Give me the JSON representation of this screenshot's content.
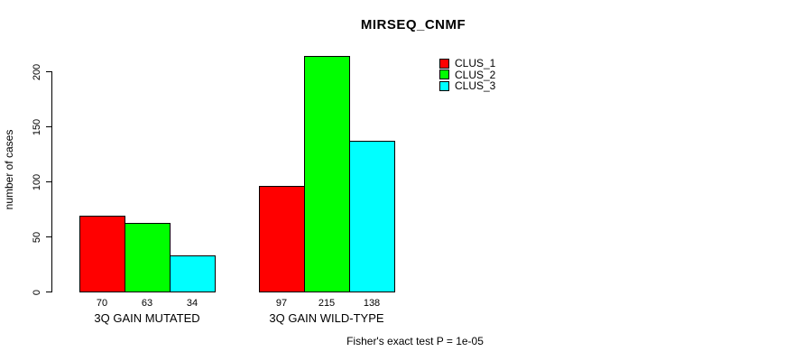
{
  "chart_data": {
    "type": "bar",
    "title": "MIRSEQ_CNMF",
    "ylabel": "number of cases",
    "xlabel": "",
    "categories": [
      "3Q GAIN MUTATED",
      "3Q GAIN WILD-TYPE"
    ],
    "series": [
      {
        "name": "CLUS_1",
        "color": "#ff0000",
        "values": [
          70,
          97
        ]
      },
      {
        "name": "CLUS_2",
        "color": "#00ff00",
        "values": [
          63,
          215
        ]
      },
      {
        "name": "CLUS_3",
        "color": "#00ffff",
        "values": [
          34,
          138
        ]
      }
    ],
    "bar_value_labels": [
      [
        70,
        63,
        34
      ],
      [
        97,
        215,
        138
      ]
    ],
    "ylim": [
      0,
      200
    ],
    "yticks": [
      0,
      50,
      100,
      150,
      200
    ],
    "grid": false,
    "legend_position": "top-right",
    "legend_entries": [
      "CLUS_1",
      "CLUS_2",
      "CLUS_3"
    ],
    "footer": "Fisher's exact test P = 1e-05",
    "colors": {
      "bar_border": "#000000",
      "axis": "#000000",
      "text": "#000000",
      "background": "#ffffff"
    }
  }
}
